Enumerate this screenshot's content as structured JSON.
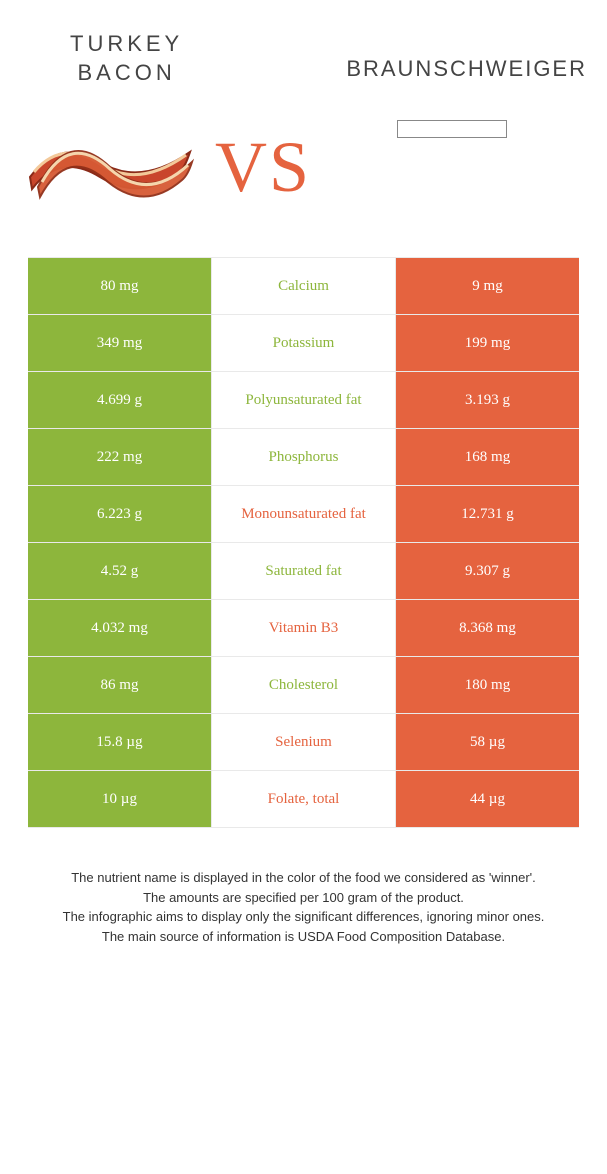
{
  "colors": {
    "green": "#8db63c",
    "orange": "#e5633f",
    "border": "#e9e9e9",
    "text": "#333333",
    "title": "#444444"
  },
  "header": {
    "left_title": "TURKEY\nBACON",
    "right_title": "BRAUNSCHWEIGER",
    "vs": "VS"
  },
  "rows": [
    {
      "left": "80 mg",
      "label": "Calcium",
      "right": "9 mg",
      "winner": "left"
    },
    {
      "left": "349 mg",
      "label": "Potassium",
      "right": "199 mg",
      "winner": "left"
    },
    {
      "left": "4.699 g",
      "label": "Polyunsaturated fat",
      "right": "3.193 g",
      "winner": "left"
    },
    {
      "left": "222 mg",
      "label": "Phosphorus",
      "right": "168 mg",
      "winner": "left"
    },
    {
      "left": "6.223 g",
      "label": "Monounsaturated fat",
      "right": "12.731 g",
      "winner": "right"
    },
    {
      "left": "4.52 g",
      "label": "Saturated fat",
      "right": "9.307 g",
      "winner": "left"
    },
    {
      "left": "4.032 mg",
      "label": "Vitamin B3",
      "right": "8.368 mg",
      "winner": "right"
    },
    {
      "left": "86 mg",
      "label": "Cholesterol",
      "right": "180 mg",
      "winner": "left"
    },
    {
      "left": "15.8 µg",
      "label": "Selenium",
      "right": "58 µg",
      "winner": "right"
    },
    {
      "left": "10 µg",
      "label": "Folate, total",
      "right": "44 µg",
      "winner": "right"
    }
  ],
  "footer": {
    "line1": "The nutrient name is displayed in the color of the food we considered as 'winner'.",
    "line2": "The amounts are specified per 100 gram of the product.",
    "line3": "The infographic aims to display only the significant differences, ignoring minor ones.",
    "line4": "The main source of information is USDA Food Composition Database."
  }
}
